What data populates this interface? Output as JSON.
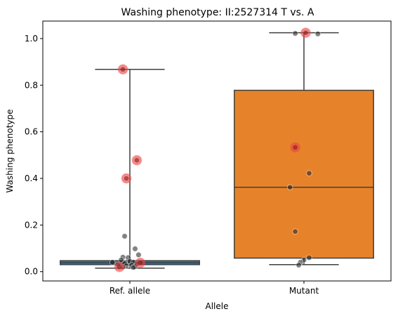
{
  "chart_data": {
    "type": "box",
    "title": "Washing phenotype: II:2527314 T vs. A",
    "xlabel": "Allele",
    "ylabel": "Washing phenotype",
    "ylim": [
      -0.04,
      1.075
    ],
    "yticks": [
      0.0,
      0.2,
      0.4,
      0.6,
      0.8,
      1.0
    ],
    "ytick_labels": [
      "0.0",
      "0.2",
      "0.4",
      "0.6",
      "0.8",
      "1.0"
    ],
    "categories": [
      "Ref. allele",
      "Mutant"
    ],
    "boxes": [
      {
        "category": "Ref. allele",
        "color": "#1f77b4",
        "whisker_low": 0.015,
        "q1": 0.03,
        "median": 0.038,
        "q3": 0.047,
        "whisker_high": 0.868
      },
      {
        "category": "Mutant",
        "color": "#e6832a",
        "whisker_low": 0.03,
        "q1": 0.058,
        "median": 0.362,
        "q3": 0.778,
        "whisker_high": 1.025
      }
    ],
    "points": [
      {
        "category": 0,
        "offset": -0.04,
        "y": 0.868,
        "highlight": true
      },
      {
        "category": 0,
        "offset": 0.04,
        "y": 0.478,
        "highlight": true
      },
      {
        "category": 0,
        "offset": -0.02,
        "y": 0.4,
        "highlight": true
      },
      {
        "category": 0,
        "offset": -0.06,
        "y": 0.02,
        "highlight": true
      },
      {
        "category": 0,
        "offset": 0.06,
        "y": 0.038,
        "highlight": true
      },
      {
        "category": 0,
        "offset": -0.03,
        "y": 0.152,
        "highlight": false
      },
      {
        "category": 0,
        "offset": 0.03,
        "y": 0.098,
        "highlight": false
      },
      {
        "category": 0,
        "offset": 0.05,
        "y": 0.072,
        "highlight": false
      },
      {
        "category": 0,
        "offset": -0.04,
        "y": 0.062,
        "highlight": false
      },
      {
        "category": 0,
        "offset": -0.01,
        "y": 0.06,
        "highlight": false
      },
      {
        "category": 0,
        "offset": -0.05,
        "y": 0.05,
        "highlight": false
      },
      {
        "category": 0,
        "offset": 0.0,
        "y": 0.045,
        "highlight": false
      },
      {
        "category": 0,
        "offset": 0.02,
        "y": 0.04,
        "highlight": false
      },
      {
        "category": 0,
        "offset": -0.03,
        "y": 0.035,
        "highlight": false
      },
      {
        "category": 0,
        "offset": 0.04,
        "y": 0.033,
        "highlight": false
      },
      {
        "category": 0,
        "offset": -0.07,
        "y": 0.03,
        "highlight": false
      },
      {
        "category": 0,
        "offset": 0.01,
        "y": 0.028,
        "highlight": false
      },
      {
        "category": 0,
        "offset": -0.02,
        "y": 0.025,
        "highlight": false
      },
      {
        "category": 0,
        "offset": 0.03,
        "y": 0.022,
        "highlight": false
      },
      {
        "category": 0,
        "offset": -0.04,
        "y": 0.02,
        "highlight": false
      },
      {
        "category": 0,
        "offset": 0.02,
        "y": 0.018,
        "highlight": false
      },
      {
        "category": 0,
        "offset": -0.1,
        "y": 0.04,
        "highlight": false
      },
      {
        "category": 1,
        "offset": 0.01,
        "y": 1.025,
        "highlight": true
      },
      {
        "category": 1,
        "offset": -0.05,
        "y": 0.533,
        "highlight": true
      },
      {
        "category": 1,
        "offset": -0.05,
        "y": 1.022,
        "highlight": false
      },
      {
        "category": 1,
        "offset": 0.08,
        "y": 1.02,
        "highlight": false
      },
      {
        "category": 1,
        "offset": 0.03,
        "y": 0.422,
        "highlight": false
      },
      {
        "category": 1,
        "offset": -0.08,
        "y": 0.362,
        "highlight": false
      },
      {
        "category": 1,
        "offset": -0.05,
        "y": 0.172,
        "highlight": false
      },
      {
        "category": 1,
        "offset": 0.03,
        "y": 0.06,
        "highlight": false
      },
      {
        "category": 1,
        "offset": 0.0,
        "y": 0.05,
        "highlight": false
      },
      {
        "category": 1,
        "offset": -0.02,
        "y": 0.04,
        "highlight": false
      },
      {
        "category": 1,
        "offset": -0.03,
        "y": 0.028,
        "highlight": false
      }
    ]
  }
}
